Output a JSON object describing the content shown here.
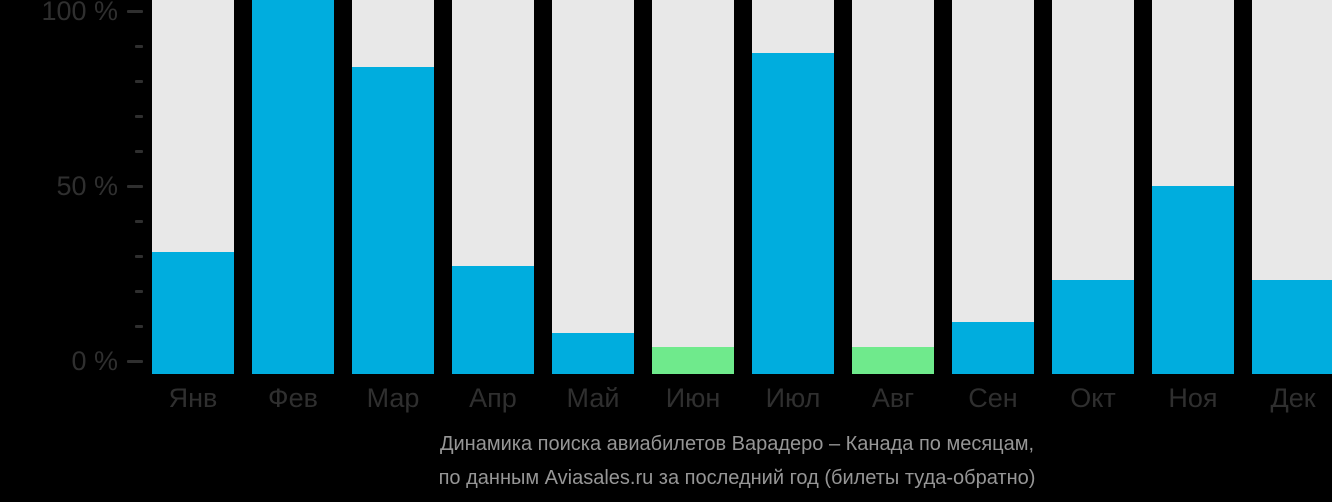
{
  "background": "#000000",
  "colors": {
    "bar_primary": "#00ADDE",
    "bar_highlight": "#6FEA8C",
    "bar_track": "#E8E8E8",
    "axis_text": "#2F2F2F",
    "caption_text": "#969696"
  },
  "y_axis": {
    "minor_step_pct": 10,
    "major_labels": {
      "100": "100 %",
      "50": "50 %",
      "0": "0 %"
    }
  },
  "chart_data": {
    "type": "bar",
    "title": "Динамика поиска авиабилетов Варадеро – Канада по месяцам,",
    "subtitle": "по данным Aviasales.ru за последний год (билеты туда-обратно)",
    "ylabel": "%",
    "ylim": [
      0,
      100
    ],
    "grid": false,
    "legend_position": "none",
    "categories": [
      "Янв",
      "Фев",
      "Мар",
      "Апр",
      "Май",
      "Июн",
      "Июл",
      "Авг",
      "Сен",
      "Окт",
      "Ноя",
      "Дек"
    ],
    "values": [
      31,
      100,
      84,
      27,
      8,
      4,
      88,
      4,
      11,
      23,
      50,
      23
    ],
    "bar_colors": [
      "blue",
      "blue",
      "blue",
      "blue",
      "blue",
      "green",
      "blue",
      "green",
      "blue",
      "blue",
      "blue",
      "blue"
    ]
  }
}
